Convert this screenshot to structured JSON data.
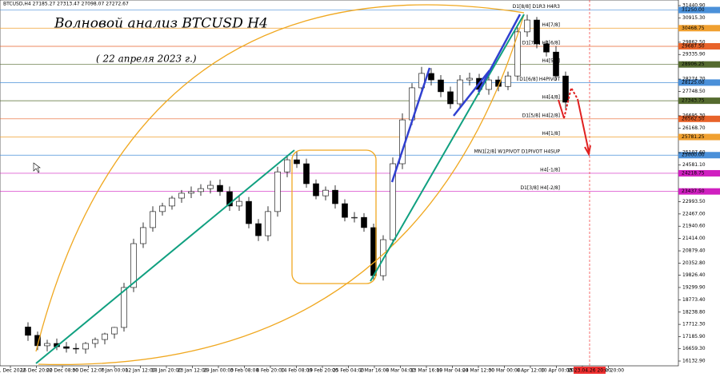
{
  "chart_data": {
    "type": "candlestick",
    "header": "BTCUSD,H4  27185.27 27313.47 27098.07 27272.67",
    "title": "Волновой анализ BTCUSD H4",
    "subtitle": "( 22 апреля 2023 г.)",
    "up_color": "#ffffff",
    "down_color": "#000000",
    "ylim": [
      15927,
      31682
    ],
    "yticks": [
      {
        "value": 31440.9,
        "label": "31440.90"
      },
      {
        "value": 30915.3,
        "label": "30915.30"
      },
      {
        "value": 29862.5,
        "label": "29862.50"
      },
      {
        "value": 29335.9,
        "label": "29335.90"
      },
      {
        "value": 28274.7,
        "label": "28274.70"
      },
      {
        "value": 27748.5,
        "label": "27748.50"
      },
      {
        "value": 26695.3,
        "label": "26695.30"
      },
      {
        "value": 26168.7,
        "label": "26168.70"
      },
      {
        "value": 25107.6,
        "label": "25107.60"
      },
      {
        "value": 24581.1,
        "label": "24581.10"
      },
      {
        "value": 22993.5,
        "label": "22993.50"
      },
      {
        "value": 22467,
        "label": "22467.00"
      },
      {
        "value": 21940.6,
        "label": "21940.60"
      },
      {
        "value": 21414,
        "label": "21414.00"
      },
      {
        "value": 20879.4,
        "label": "20879.40"
      },
      {
        "value": 20352.8,
        "label": "20352.80"
      },
      {
        "value": 19826.4,
        "label": "19826.40"
      },
      {
        "value": 19299.9,
        "label": "19299.90"
      },
      {
        "value": 18773.4,
        "label": "18773.40"
      },
      {
        "value": 18238.8,
        "label": "18238.80"
      },
      {
        "value": 17712.3,
        "label": "17712.30"
      },
      {
        "value": 17185.9,
        "label": "17185.90"
      },
      {
        "value": 16659.3,
        "label": "16659.30"
      },
      {
        "value": 16132.9,
        "label": "16132.90"
      }
    ],
    "x_labels": [
      "11 Dec 2022",
      "16 Dec 20:00",
      "22 Dec 08:00",
      "30 Dec 12:00",
      "7 Jan 00:00",
      "12 Jan 12:00",
      "18 Jan 20:00",
      "23 Jan 12:00",
      "29 Jan 00:00",
      "3 Feb 08:00",
      "8 Feb 20:00",
      "14 Feb 08:00",
      "19 Feb 20:00",
      "25 Feb 04:00",
      "2 Mar 16:00",
      "8 Mar 04:00",
      "13 Mar 16:00",
      "19 Mar 04:00",
      "24 Mar 12:00",
      "30 Mar 00:00",
      "4 Apr 12:00",
      "10 Apr 00:00",
      "15 Apr 08:00",
      "20 Apr 20:00"
    ],
    "forecast_label": "2023.04.26 20:00",
    "levels": [
      {
        "value": 31250,
        "label": "31250.00",
        "name": "D1[8/8] D1R3 H4R3",
        "color": "#4a90d9"
      },
      {
        "value": 30468.75,
        "label": "30468.75",
        "name": "H4[7/8]",
        "color": "#f0a030"
      },
      {
        "value": 29687.5,
        "label": "29687.50",
        "name": "D1[7/8] H4[6/8]",
        "color": "#e8632a"
      },
      {
        "value": 28906.25,
        "label": "28906.25",
        "name": "H4[5/8]",
        "color": "#556b2f"
      },
      {
        "value": 28125,
        "label": "28125.00",
        "name": "D1[6/8] H4PIVOT",
        "color": "#4a90d9"
      },
      {
        "value": 27343.75,
        "label": "27343.75",
        "name": "H4[4/8]",
        "color": "#556b2f"
      },
      {
        "value": 26562.5,
        "label": "26562.50",
        "name": "D1[5/8] H4[2/8]",
        "color": "#e8632a"
      },
      {
        "value": 25781.25,
        "label": "25781.25",
        "name": "H4[1/8]",
        "color": "#f0a030"
      },
      {
        "value": 25000,
        "label": "25000.00",
        "name": "MN1[2/8] W1PIVOT D1PIVOT H4SUP",
        "color": "#4a90d9"
      },
      {
        "value": 24218.75,
        "label": "24218.75",
        "name": "H4[-1/8]",
        "color": "#d020c0"
      },
      {
        "value": 23437.5,
        "label": "23437.50",
        "name": "D1[3/8] H4[-2/8]",
        "color": "#d020c0"
      }
    ],
    "series": {
      "open": [
        17600,
        17240,
        16790,
        16890,
        16750,
        16680,
        16650,
        16890,
        17060,
        17300,
        17580,
        19300,
        21190,
        21880,
        22570,
        22810,
        23150,
        23360,
        23430,
        23560,
        23700,
        23430,
        22810,
        23010,
        22050,
        21530,
        22570,
        24280,
        24800,
        24630,
        23770,
        23250,
        23490,
        22910,
        22320,
        22320,
        21880,
        19810,
        21360,
        24630,
        26520,
        27900,
        28520,
        28240,
        27730,
        27210,
        28240,
        28310,
        27830,
        28240,
        27960,
        28410,
        30310,
        30820,
        29790,
        29440,
        28410
      ],
      "high": [
        17800,
        17400,
        17050,
        17100,
        16950,
        16900,
        16950,
        17150,
        17350,
        17600,
        19500,
        21400,
        22100,
        22800,
        22950,
        23250,
        23500,
        23650,
        23750,
        23900,
        23950,
        23650,
        23250,
        23200,
        22250,
        22800,
        24500,
        25000,
        25150,
        24850,
        23950,
        23650,
        23700,
        23100,
        22550,
        22500,
        22050,
        21550,
        24900,
        26800,
        28100,
        28800,
        28750,
        28450,
        27950,
        28450,
        28550,
        28500,
        28450,
        28400,
        28600,
        30500,
        31050,
        30950,
        29950,
        29700,
        28600
      ],
      "low": [
        17000,
        16600,
        16550,
        16600,
        16500,
        16450,
        16450,
        16700,
        16850,
        17100,
        17400,
        19100,
        21000,
        21700,
        22400,
        22650,
        22950,
        23150,
        23250,
        23350,
        23250,
        22600,
        22600,
        21850,
        21300,
        21300,
        22350,
        24050,
        24450,
        23600,
        23100,
        23050,
        22700,
        22150,
        22100,
        21700,
        19600,
        19600,
        21150,
        24400,
        26300,
        27700,
        28000,
        27500,
        27000,
        27000,
        28000,
        27600,
        27600,
        27750,
        27800,
        28200,
        30100,
        29600,
        29250,
        28200,
        27000
      ],
      "close": [
        17240,
        16790,
        16890,
        16750,
        16680,
        16650,
        16890,
        17060,
        17300,
        17580,
        19300,
        21190,
        21880,
        22570,
        22810,
        23150,
        23360,
        23430,
        23560,
        23700,
        23430,
        22810,
        23010,
        22050,
        21530,
        22570,
        24280,
        24800,
        24630,
        23770,
        23250,
        23490,
        22910,
        22320,
        22320,
        21880,
        19810,
        21360,
        24630,
        26520,
        27900,
        28520,
        28240,
        27730,
        27210,
        28240,
        28310,
        27830,
        28240,
        27960,
        28410,
        30310,
        30820,
        29790,
        29440,
        28410,
        27280
      ]
    }
  }
}
